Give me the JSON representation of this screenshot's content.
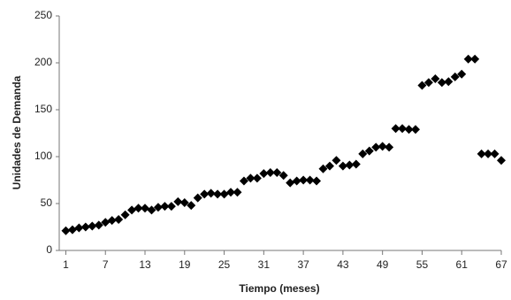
{
  "chart_data": {
    "type": "scatter",
    "x_label": "Tiempo (meses)",
    "y_label": "Unidades de Demanda",
    "x": [
      1,
      2,
      3,
      4,
      5,
      6,
      7,
      8,
      9,
      10,
      11,
      12,
      13,
      14,
      15,
      16,
      17,
      18,
      19,
      20,
      21,
      22,
      23,
      24,
      25,
      26,
      27,
      28,
      29,
      30,
      31,
      32,
      33,
      34,
      35,
      36,
      37,
      38,
      39,
      40,
      41,
      42,
      43,
      44,
      45,
      46,
      47,
      48,
      49,
      50,
      51,
      52,
      53,
      54,
      55,
      56,
      57,
      58,
      59,
      60,
      61,
      62,
      63,
      64,
      65,
      66,
      67
    ],
    "values": [
      21,
      22,
      24,
      25,
      26,
      27,
      30,
      32,
      33,
      38,
      43,
      45,
      45,
      43,
      46,
      47,
      47,
      52,
      51,
      48,
      56,
      60,
      61,
      60,
      60,
      62,
      62,
      74,
      77,
      77,
      82,
      83,
      83,
      80,
      72,
      74,
      75,
      75,
      74,
      87,
      90,
      96,
      90,
      91,
      92,
      103,
      106,
      110,
      111,
      110,
      130,
      130,
      129,
      129,
      176,
      179,
      183,
      179,
      180,
      185,
      188,
      204,
      204,
      103,
      103,
      103,
      96
    ],
    "color": "#000000",
    "xlim": [
      0,
      67
    ],
    "xticks": [
      1,
      7,
      13,
      19,
      25,
      31,
      37,
      43,
      49,
      55,
      61,
      67
    ],
    "ylim": [
      0,
      250
    ],
    "yticks": [
      0,
      50,
      100,
      150,
      200,
      250
    ],
    "grid": false
  }
}
